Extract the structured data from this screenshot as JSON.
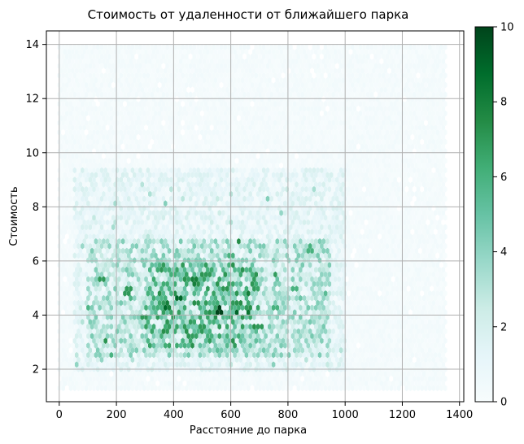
{
  "chart_data": {
    "type": "heatmap",
    "subtype": "hexbin",
    "title": "Стоимость от удаленности от ближайшего парка",
    "xlabel": "Расстояние до парка",
    "ylabel": "Стоимость",
    "xlim": [
      -45,
      1415
    ],
    "ylim": [
      0.8,
      14.5
    ],
    "xticks": [
      0,
      200,
      400,
      600,
      800,
      1000,
      1200,
      1400
    ],
    "yticks": [
      2,
      4,
      6,
      8,
      10,
      12,
      14
    ],
    "grid": true,
    "data_extent": {
      "x": [
        0,
        1350
      ],
      "y": [
        1.3,
        14.0
      ]
    },
    "colormap": "BuGn",
    "colors": [
      "#f7fcfd",
      "#e5f5f9",
      "#ccece6",
      "#99d8c9",
      "#66c2a4",
      "#41ae76",
      "#238b45",
      "#006d2c",
      "#00441b"
    ],
    "colorbar": {
      "min": 0,
      "max": 10,
      "ticks": [
        0,
        2,
        4,
        6,
        8,
        10
      ],
      "placement": "right"
    },
    "density_regions": [
      {
        "x": [
          300,
          700
        ],
        "y": [
          2.8,
          6.0
        ],
        "level": 4.5
      },
      {
        "x": [
          100,
          950
        ],
        "y": [
          2.5,
          6.8
        ],
        "level": 2.8
      },
      {
        "x": [
          50,
          1000
        ],
        "y": [
          2.0,
          9.5
        ],
        "level": 1.2
      },
      {
        "x": [
          0,
          1350
        ],
        "y": [
          1.3,
          14.0
        ],
        "level": 0.25
      }
    ],
    "hot_bins": [
      {
        "x": 420,
        "y": 4.6,
        "value": 9
      },
      {
        "x": 560,
        "y": 4.2,
        "value": 10
      },
      {
        "x": 620,
        "y": 4.1,
        "value": 9
      },
      {
        "x": 380,
        "y": 4.4,
        "value": 8
      },
      {
        "x": 470,
        "y": 5.2,
        "value": 8
      },
      {
        "x": 520,
        "y": 5.5,
        "value": 7
      },
      {
        "x": 660,
        "y": 4.8,
        "value": 8
      },
      {
        "x": 240,
        "y": 4.9,
        "value": 7
      },
      {
        "x": 300,
        "y": 3.9,
        "value": 7
      },
      {
        "x": 700,
        "y": 3.6,
        "value": 7
      },
      {
        "x": 760,
        "y": 4.3,
        "value": 6
      },
      {
        "x": 150,
        "y": 5.3,
        "value": 7
      },
      {
        "x": 880,
        "y": 6.5,
        "value": 6
      },
      {
        "x": 600,
        "y": 6.2,
        "value": 6
      },
      {
        "x": 360,
        "y": 3.2,
        "value": 6
      },
      {
        "x": 820,
        "y": 5.0,
        "value": 6
      },
      {
        "x": 500,
        "y": 3.5,
        "value": 7
      },
      {
        "x": 680,
        "y": 5.4,
        "value": 6
      }
    ]
  }
}
